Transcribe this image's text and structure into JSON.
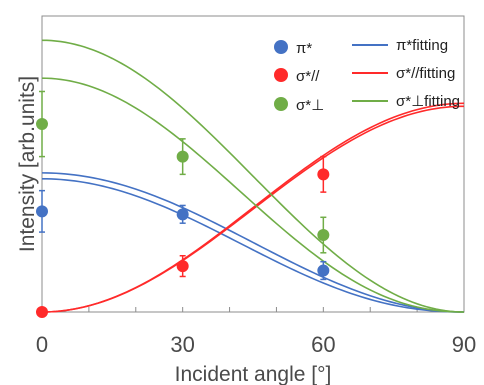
{
  "chart_data": {
    "type": "scatter",
    "xlabel": "Incident angle [°]",
    "ylabel": "Intensity [arb.units]",
    "xlim": [
      0,
      90
    ],
    "ylim": [
      0,
      1
    ],
    "x_ticks": [
      "0",
      "30",
      "60",
      "90"
    ],
    "y_ticks": [],
    "grid": false,
    "legend_position": "top-right",
    "series": [
      {
        "name": "π*",
        "fit_name": "π*fitting",
        "color": "#4472c4",
        "points": [
          {
            "x": 0,
            "y": 0.34,
            "err": 0.07
          },
          {
            "x": 30,
            "y": 0.33,
            "err": 0.03
          },
          {
            "x": 60,
            "y": 0.14,
            "err": 0.03
          }
        ],
        "fit_curves": [
          {
            "y0": 0.47,
            "power": 2
          },
          {
            "y0": 0.45,
            "power": 2.2
          }
        ]
      },
      {
        "name": "σ*//",
        "fit_name": "σ*//fitting",
        "color": "#ff2a2a",
        "points": [
          {
            "x": 0,
            "y": 0.0,
            "err": 0.0
          },
          {
            "x": 30,
            "y": 0.155,
            "err": 0.035
          },
          {
            "x": 60,
            "y": 0.465,
            "err": 0.06
          }
        ],
        "fit_curves": [
          {
            "y1": 0.705,
            "power": 2,
            "shape": "rising"
          },
          {
            "y1": 0.695,
            "power": 2,
            "shape": "rising"
          }
        ]
      },
      {
        "name": "σ*⊥",
        "fit_name": "σ*⊥fitting",
        "color": "#70ad47",
        "points": [
          {
            "x": 0,
            "y": 0.635,
            "err": 0.11
          },
          {
            "x": 30,
            "y": 0.525,
            "err": 0.06
          },
          {
            "x": 60,
            "y": 0.26,
            "err": 0.06
          }
        ],
        "fit_curves": [
          {
            "y0": 0.918,
            "power": 2
          },
          {
            "y0": 0.79,
            "power": 2.2
          }
        ]
      }
    ]
  },
  "legend": {
    "marker_labels": [
      "π*",
      "σ*//",
      "σ*⊥"
    ],
    "line_labels": [
      "π*fitting",
      "σ*//fitting",
      "σ*⊥fitting"
    ]
  }
}
